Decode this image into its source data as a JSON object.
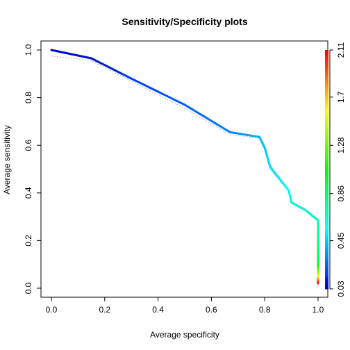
{
  "chart_data": {
    "type": "line",
    "title": "Sensitivity/Specificity plots",
    "xlabel": "Average specificity",
    "ylabel": "Average sensitivity",
    "xlim": [
      0,
      1
    ],
    "ylim": [
      0,
      1
    ],
    "x_ticks": [
      "0.0",
      "0.2",
      "0.4",
      "0.6",
      "0.8",
      "1.0"
    ],
    "y_ticks": [
      "0.0",
      "0.2",
      "0.4",
      "0.6",
      "0.8",
      "1.0"
    ],
    "grid": false,
    "series": [
      {
        "x": [
          0.0,
          0.15,
          0.3,
          0.5,
          0.67,
          0.78,
          0.8,
          0.82,
          0.89,
          0.9,
          0.95,
          1.0,
          1.0,
          1.0,
          1.0,
          1.0
        ],
        "y": [
          1.0,
          0.965,
          0.88,
          0.77,
          0.655,
          0.635,
          0.59,
          0.51,
          0.41,
          0.36,
          0.33,
          0.285,
          0.2,
          0.1,
          0.05,
          0.02
        ],
        "cutoff": [
          0.03,
          0.08,
          0.15,
          0.22,
          0.3,
          0.4,
          0.44,
          0.48,
          0.55,
          0.6,
          0.65,
          0.7,
          0.8,
          1.0,
          1.5,
          2.11
        ]
      }
    ],
    "reference_series": {
      "x": [
        0.0,
        0.15,
        0.3,
        0.5,
        0.67,
        0.78,
        0.8,
        0.82,
        0.89,
        0.9,
        0.95,
        1.0,
        1.0
      ],
      "y": [
        0.975,
        0.955,
        0.87,
        0.755,
        0.645,
        0.63,
        0.58,
        0.5,
        0.405,
        0.355,
        0.325,
        0.28,
        0.0
      ]
    },
    "colorbar": {
      "range": [
        0.03,
        2.11
      ],
      "ticks": [
        "0.03",
        "0.45",
        "0.86",
        "1.28",
        "1.7",
        "2.11"
      ],
      "tick_values": [
        0.03,
        0.45,
        0.86,
        1.28,
        1.7,
        2.11
      ],
      "colormap": "rainbow"
    }
  }
}
